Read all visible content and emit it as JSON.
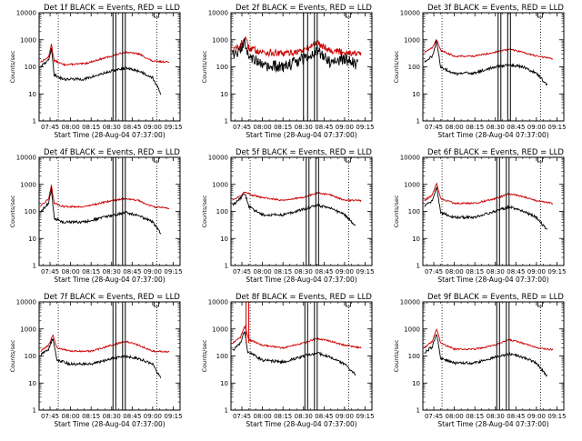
{
  "chart_data": [
    {
      "type": "line",
      "title": "Det 1f BLACK = Events, RED = LLD",
      "xlabel": "Start Time (28-Aug-04 07:37:00)",
      "ylabel": "Counts/sec",
      "yscale": "log",
      "ylim": [
        1,
        10000
      ],
      "xlim": [
        "07:37",
        "09:20"
      ],
      "x_ticks": [
        "07:45",
        "08:00",
        "08:15",
        "08:30",
        "08:45",
        "09:00",
        "09:15"
      ],
      "y_ticks": [
        "1",
        "10",
        "100",
        "1000",
        "10000"
      ],
      "grid": false,
      "legend": "none",
      "peak_time": "07:46",
      "series": [
        {
          "name": "LLD",
          "color": "#cc0000",
          "values": {
            "07:38": 150,
            "07:44": 230,
            "07:46": 700,
            "07:48": 170,
            "07:55": 120,
            "08:10": 130,
            "08:30": 250,
            "08:40": 350,
            "08:50": 300,
            "09:00": 160,
            "09:12": 150
          }
        },
        {
          "name": "Events",
          "color": "#000000",
          "values": {
            "07:38": 110,
            "07:44": 170,
            "07:46": 500,
            "07:48": 50,
            "07:55": 35,
            "08:10": 35,
            "08:30": 70,
            "08:40": 90,
            "08:50": 70,
            "09:00": 40,
            "09:06": 10
          }
        }
      ],
      "markers": {
        "vertical_lines": [
          "08:31",
          "08:33",
          "08:38",
          "08:40"
        ],
        "dotted_lines": [
          "07:51",
          "09:03"
        ]
      }
    },
    {
      "type": "line",
      "title": "Det 2f BLACK = Events, RED = LLD",
      "xlabel": "Start Time (28-Aug-04 07:37:00)",
      "ylabel": "Counts/sec",
      "yscale": "log",
      "ylim": [
        1,
        10000
      ],
      "xlim": [
        "07:37",
        "09:20"
      ],
      "x_ticks": [
        "07:45",
        "08:00",
        "08:15",
        "08:30",
        "08:45",
        "09:00",
        "09:15"
      ],
      "y_ticks": [
        "1",
        "10",
        "100",
        "1000",
        "10000"
      ],
      "grid": false,
      "legend": "none",
      "peak_time": "07:47",
      "series": [
        {
          "name": "LLD",
          "color": "#cc0000",
          "values": {
            "07:38": 400,
            "07:44": 600,
            "07:47": 1200,
            "07:50": 500,
            "08:00": 350,
            "08:15": 300,
            "08:30": 400,
            "08:40": 800,
            "08:50": 400,
            "09:00": 350,
            "09:12": 300
          }
        },
        {
          "name": "Events",
          "color": "#000000",
          "values": {
            "07:38": 250,
            "07:44": 400,
            "07:47": 800,
            "07:50": 300,
            "08:00": 100,
            "08:15": 100,
            "08:30": 200,
            "08:40": 400,
            "08:50": 150,
            "09:00": 200,
            "09:10": 120
          }
        }
      ],
      "markers": {
        "vertical_lines": [
          "08:30",
          "08:33",
          "08:38",
          "08:40"
        ],
        "dotted_lines": [
          "07:51",
          "09:03"
        ]
      }
    },
    {
      "type": "line",
      "title": "Det 3f BLACK = Events, RED = LLD",
      "xlabel": "Start Time (28-Aug-04 07:37:00)",
      "ylabel": "Counts/sec",
      "yscale": "log",
      "ylim": [
        1,
        10000
      ],
      "xlim": [
        "07:37",
        "09:20"
      ],
      "x_ticks": [
        "07:45",
        "08:00",
        "08:15",
        "08:30",
        "08:45",
        "09:00",
        "09:15"
      ],
      "y_ticks": [
        "1",
        "10",
        "100",
        "1000",
        "10000"
      ],
      "grid": false,
      "legend": "none",
      "peak_time": "07:47",
      "series": [
        {
          "name": "LLD",
          "color": "#cc0000",
          "values": {
            "07:38": 350,
            "07:44": 500,
            "07:47": 1100,
            "07:50": 400,
            "08:00": 250,
            "08:15": 250,
            "08:30": 350,
            "08:40": 450,
            "08:50": 350,
            "09:00": 250,
            "09:12": 200
          }
        },
        {
          "name": "Events",
          "color": "#000000",
          "values": {
            "07:38": 150,
            "07:44": 250,
            "07:47": 900,
            "07:50": 100,
            "08:00": 55,
            "08:15": 60,
            "08:30": 100,
            "08:40": 120,
            "08:50": 100,
            "09:00": 60,
            "09:08": 20
          }
        }
      ],
      "markers": {
        "vertical_lines": [
          "08:32",
          "08:34",
          "08:39",
          "08:41"
        ],
        "dotted_lines": [
          "07:51",
          "09:03"
        ]
      }
    },
    {
      "type": "line",
      "title": "Det 4f BLACK = Events, RED = LLD",
      "xlabel": "Start Time (28-Aug-04 07:37:00)",
      "ylabel": "Counts/sec",
      "yscale": "log",
      "ylim": [
        1,
        10000
      ],
      "xlim": [
        "07:37",
        "09:20"
      ],
      "x_ticks": [
        "07:45",
        "08:00",
        "08:15",
        "08:30",
        "08:45",
        "09:00",
        "09:15"
      ],
      "y_ticks": [
        "1",
        "10",
        "100",
        "1000",
        "10000"
      ],
      "grid": false,
      "legend": "none",
      "peak_time": "07:46",
      "series": [
        {
          "name": "LLD",
          "color": "#cc0000",
          "values": {
            "07:38": 150,
            "07:44": 300,
            "07:46": 950,
            "07:48": 200,
            "07:55": 150,
            "08:10": 150,
            "08:30": 250,
            "08:40": 300,
            "08:50": 250,
            "09:00": 150,
            "09:12": 130
          }
        },
        {
          "name": "Events",
          "color": "#000000",
          "values": {
            "07:38": 100,
            "07:44": 200,
            "07:46": 700,
            "07:48": 55,
            "07:55": 40,
            "08:10": 40,
            "08:30": 70,
            "08:40": 90,
            "08:50": 70,
            "09:00": 40,
            "09:06": 15
          }
        }
      ],
      "markers": {
        "vertical_lines": [
          "08:31",
          "08:33",
          "08:38",
          "08:40"
        ],
        "dotted_lines": [
          "07:51",
          "09:03"
        ]
      }
    },
    {
      "type": "line",
      "title": "Det 5f BLACK = Events, RED = LLD",
      "xlabel": "Start Time (28-Aug-04 07:37:00)",
      "ylabel": "Counts/sec",
      "yscale": "log",
      "ylim": [
        1,
        10000
      ],
      "xlim": [
        "07:37",
        "09:20"
      ],
      "x_ticks": [
        "07:45",
        "08:00",
        "08:15",
        "08:30",
        "08:45",
        "09:00",
        "09:15"
      ],
      "y_ticks": [
        "1",
        "10",
        "100",
        "1000",
        "10000"
      ],
      "grid": false,
      "legend": "none",
      "peak_time": "07:47",
      "series": [
        {
          "name": "LLD",
          "color": "#cc0000",
          "values": {
            "07:38": 260,
            "07:44": 380,
            "07:47": 550,
            "07:52": 400,
            "08:00": 320,
            "08:15": 260,
            "08:30": 330,
            "08:40": 480,
            "08:50": 400,
            "09:00": 260,
            "09:12": 250
          }
        },
        {
          "name": "Events",
          "color": "#000000",
          "values": {
            "07:38": 170,
            "07:44": 300,
            "07:47": 500,
            "07:50": 150,
            "08:00": 75,
            "08:15": 75,
            "08:30": 120,
            "08:40": 170,
            "08:50": 130,
            "09:00": 75,
            "09:08": 30
          }
        }
      ],
      "markers": {
        "vertical_lines": [
          "08:32",
          "08:34",
          "08:39",
          "08:41"
        ],
        "dotted_lines": [
          "07:51",
          "09:03"
        ]
      }
    },
    {
      "type": "line",
      "title": "Det 6f BLACK = Events, RED = LLD",
      "xlabel": "Start Time (28-Aug-04 07:37:00)",
      "ylabel": "Counts/sec",
      "yscale": "log",
      "ylim": [
        1,
        10000
      ],
      "xlim": [
        "07:37",
        "09:20"
      ],
      "x_ticks": [
        "07:45",
        "08:00",
        "08:15",
        "08:30",
        "08:45",
        "09:00",
        "09:15"
      ],
      "y_ticks": [
        "1",
        "10",
        "100",
        "1000",
        "10000"
      ],
      "grid": false,
      "legend": "none",
      "peak_time": "07:47",
      "series": [
        {
          "name": "LLD",
          "color": "#cc0000",
          "values": {
            "07:38": 250,
            "07:44": 400,
            "07:47": 1100,
            "07:50": 300,
            "08:00": 200,
            "08:15": 200,
            "08:30": 300,
            "08:40": 450,
            "08:50": 350,
            "09:00": 250,
            "09:12": 200
          }
        },
        {
          "name": "Events",
          "color": "#000000",
          "values": {
            "07:38": 150,
            "07:44": 250,
            "07:47": 800,
            "07:50": 90,
            "08:00": 60,
            "08:15": 60,
            "08:30": 100,
            "08:40": 150,
            "08:50": 100,
            "09:00": 60,
            "09:08": 20
          }
        }
      ],
      "markers": {
        "vertical_lines": [
          "08:31",
          "08:33",
          "08:38",
          "08:40"
        ],
        "dotted_lines": [
          "07:51",
          "09:03"
        ]
      }
    },
    {
      "type": "line",
      "title": "Det 7f BLACK = Events, RED = LLD",
      "xlabel": "Start Time (28-Aug-04 07:37:00)",
      "ylabel": "Counts/sec",
      "yscale": "log",
      "ylim": [
        1,
        10000
      ],
      "xlim": [
        "07:37",
        "09:20"
      ],
      "x_ticks": [
        "07:45",
        "08:00",
        "08:15",
        "08:30",
        "08:45",
        "09:00",
        "09:15"
      ],
      "y_ticks": [
        "1",
        "10",
        "100",
        "1000",
        "10000"
      ],
      "grid": false,
      "legend": "none",
      "peak_time": "07:47",
      "series": [
        {
          "name": "LLD",
          "color": "#cc0000",
          "values": {
            "07:38": 150,
            "07:44": 250,
            "07:47": 600,
            "07:50": 200,
            "08:00": 150,
            "08:15": 150,
            "08:30": 250,
            "08:40": 350,
            "08:50": 250,
            "09:00": 150,
            "09:12": 140
          }
        },
        {
          "name": "Events",
          "color": "#000000",
          "values": {
            "07:38": 110,
            "07:44": 180,
            "07:47": 450,
            "07:50": 70,
            "08:00": 50,
            "08:15": 50,
            "08:30": 80,
            "08:40": 100,
            "08:50": 80,
            "09:00": 50,
            "09:06": 15
          }
        }
      ],
      "markers": {
        "vertical_lines": [
          "08:31",
          "08:33",
          "08:38",
          "08:40"
        ],
        "dotted_lines": [
          "07:51",
          "09:03"
        ]
      }
    },
    {
      "type": "line",
      "title": "Det 8f BLACK = Events, RED = LLD",
      "xlabel": "Start Time (28-Aug-04 07:37:00)",
      "ylabel": "Counts/sec",
      "yscale": "log",
      "ylim": [
        1,
        10000
      ],
      "xlim": [
        "07:37",
        "09:20"
      ],
      "x_ticks": [
        "07:45",
        "08:00",
        "08:15",
        "08:30",
        "08:45",
        "09:00",
        "09:15"
      ],
      "y_ticks": [
        "1",
        "10",
        "100",
        "1000",
        "10000"
      ],
      "grid": false,
      "legend": "none",
      "peak_time": "07:47",
      "series": [
        {
          "name": "LLD",
          "color": "#cc0000",
          "values": {
            "07:38": 300,
            "07:44": 500,
            "07:47": 1300,
            "07:50": 400,
            "08:00": 250,
            "08:15": 200,
            "08:30": 300,
            "08:40": 450,
            "08:50": 350,
            "09:00": 250,
            "09:12": 200
          }
        },
        {
          "name": "Events",
          "color": "#000000",
          "values": {
            "07:38": 160,
            "07:44": 300,
            "07:47": 900,
            "07:49": 150,
            "08:00": 70,
            "08:15": 60,
            "08:30": 100,
            "08:40": 130,
            "08:50": 90,
            "09:00": 50,
            "09:08": 20
          }
        }
      ],
      "markers": {
        "vertical_lines": [
          "08:31",
          "08:33",
          "08:38",
          "08:40"
        ],
        "dotted_lines": [
          "07:51",
          "09:03"
        ],
        "red_spike_times": [
          "07:48",
          "07:50"
        ]
      }
    },
    {
      "type": "line",
      "title": "Det 9f BLACK = Events, RED = LLD",
      "xlabel": "Start Time (28-Aug-04 07:37:00)",
      "ylabel": "Counts/sec",
      "yscale": "log",
      "ylim": [
        1,
        10000
      ],
      "xlim": [
        "07:37",
        "09:20"
      ],
      "x_ticks": [
        "07:45",
        "08:00",
        "08:15",
        "08:30",
        "08:45",
        "09:00",
        "09:15"
      ],
      "y_ticks": [
        "1",
        "10",
        "100",
        "1000",
        "10000"
      ],
      "grid": false,
      "legend": "none",
      "peak_time": "07:47",
      "series": [
        {
          "name": "LLD",
          "color": "#cc0000",
          "values": {
            "07:38": 200,
            "07:44": 350,
            "07:47": 1000,
            "07:50": 300,
            "08:00": 180,
            "08:15": 180,
            "08:30": 250,
            "08:40": 400,
            "08:50": 300,
            "09:00": 200,
            "09:12": 170
          }
        },
        {
          "name": "Events",
          "color": "#000000",
          "values": {
            "07:38": 130,
            "07:44": 220,
            "07:47": 700,
            "07:50": 80,
            "08:00": 55,
            "08:15": 55,
            "08:30": 90,
            "08:40": 120,
            "08:50": 90,
            "09:00": 55,
            "09:08": 18
          }
        }
      ],
      "markers": {
        "vertical_lines": [
          "08:31",
          "08:33",
          "08:38",
          "08:40"
        ],
        "dotted_lines": [
          "07:51",
          "09:03"
        ]
      }
    }
  ]
}
